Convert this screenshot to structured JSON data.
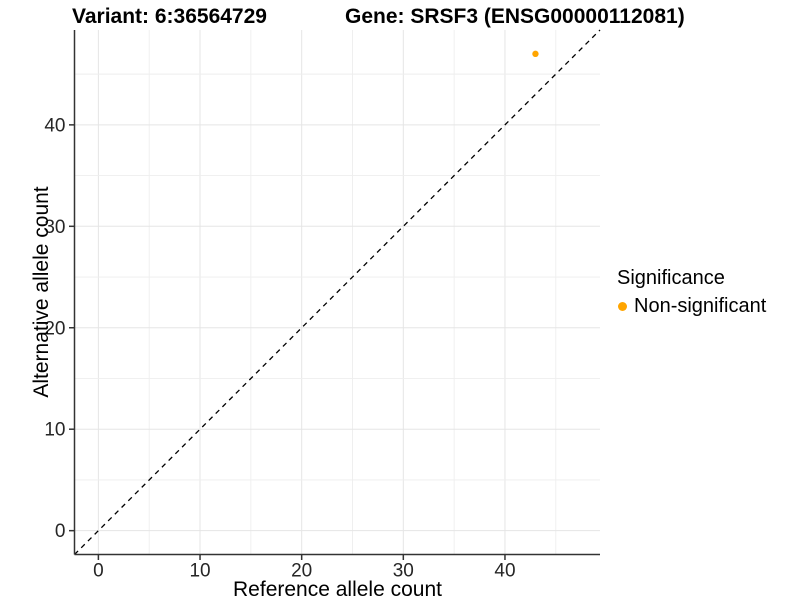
{
  "chart_data": {
    "type": "scatter",
    "titles": {
      "left": "Variant: 6:36564729",
      "right": "Gene: SRSF3 (ENSG00000112081)"
    },
    "xlabel": "Reference allele count",
    "ylabel": "Alternative allele count",
    "xticks": [
      0,
      10,
      20,
      30,
      40
    ],
    "yticks": [
      0,
      10,
      20,
      30,
      40
    ],
    "xlim": [
      -2.35,
      49.35
    ],
    "ylim": [
      -2.35,
      49.35
    ],
    "minor_grid_step": 5,
    "grid": "on",
    "identity_line": {
      "style": "dashed",
      "slope": 1,
      "intercept": 0,
      "color": "#000000"
    },
    "series": [
      {
        "name": "Non-significant",
        "color": "#FFA500",
        "points": [
          {
            "x": 43,
            "y": 47
          }
        ]
      }
    ],
    "legend": {
      "title": "Significance",
      "position": "right",
      "entries": [
        {
          "label": "Non-significant",
          "color": "#FFA500"
        }
      ]
    },
    "colors": {
      "axis": "#333333",
      "grid_major": "#e5e5e5",
      "grid_minor": "#eeeeee",
      "background": "#ffffff",
      "point": "#FFA500"
    }
  }
}
